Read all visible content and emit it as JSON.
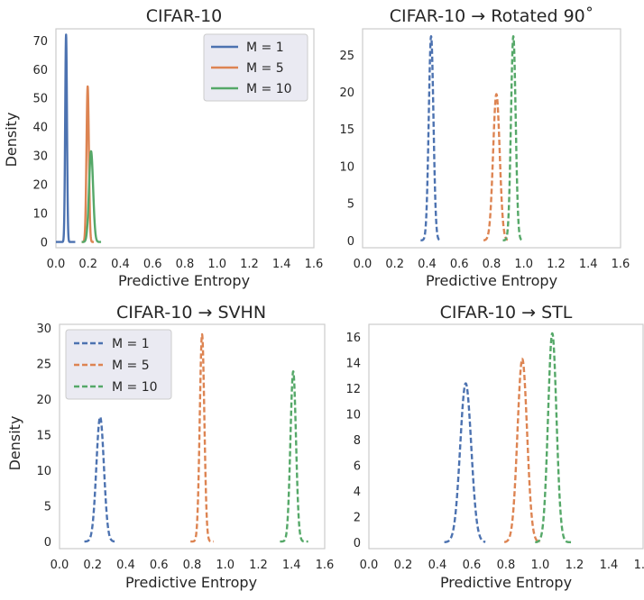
{
  "colors": {
    "m1": "#4c72b0",
    "m5": "#dd8452",
    "m10": "#55a868",
    "frame": "#cccccc",
    "legend_bg": "#eaeaf2"
  },
  "legend_entries": [
    "M = 1",
    "M = 5",
    "M = 10"
  ],
  "chart_data": [
    {
      "type": "line",
      "title": "CIFAR-10",
      "xlabel": "Predictive Entropy",
      "ylabel": "Density",
      "xlim": [
        0.0,
        1.6
      ],
      "ylim": [
        -2,
        74
      ],
      "xticks": [
        "0.0",
        "0.2",
        "0.4",
        "0.6",
        "0.8",
        "1.0",
        "1.2",
        "1.4",
        "1.6"
      ],
      "yticks": [
        "0",
        "10",
        "20",
        "30",
        "40",
        "50",
        "60",
        "70"
      ],
      "line_style": "solid",
      "legend": "top-right",
      "series": [
        {
          "name": "M = 1",
          "color_key": "m1",
          "mean": 0.063,
          "peak": 72,
          "sigma": 0.0055,
          "xmin": 0.0,
          "xmax": 0.12
        },
        {
          "name": "M = 5",
          "color_key": "m5",
          "mean": 0.197,
          "peak": 54,
          "sigma": 0.0074,
          "xmin": 0.16,
          "xmax": 0.235
        },
        {
          "name": "M = 10",
          "color_key": "m10",
          "mean": 0.218,
          "peak": 31.5,
          "sigma": 0.0126,
          "xmin": 0.16,
          "xmax": 0.28
        }
      ]
    },
    {
      "type": "line",
      "title": "CIFAR-10 → Rotated 90˚",
      "xlabel": "Predictive Entropy",
      "ylabel": "",
      "xlim": [
        0.0,
        1.6
      ],
      "ylim": [
        -1,
        28.5
      ],
      "xticks": [
        "0.0",
        "0.2",
        "0.4",
        "0.6",
        "0.8",
        "1.0",
        "1.2",
        "1.4",
        "1.6"
      ],
      "yticks": [
        "0",
        "5",
        "10",
        "15",
        "20",
        "25"
      ],
      "line_style": "dashed",
      "legend": "none",
      "series": [
        {
          "name": "M = 1",
          "color_key": "m1",
          "mean": 0.425,
          "peak": 27.5,
          "sigma": 0.0145,
          "xmin": 0.36,
          "xmax": 0.49
        },
        {
          "name": "M = 5",
          "color_key": "m5",
          "mean": 0.83,
          "peak": 19.7,
          "sigma": 0.0203,
          "xmin": 0.75,
          "xmax": 0.9
        },
        {
          "name": "M = 10",
          "color_key": "m10",
          "mean": 0.935,
          "peak": 27.5,
          "sigma": 0.0145,
          "xmin": 0.87,
          "xmax": 1.0
        }
      ]
    },
    {
      "type": "line",
      "title": "CIFAR-10 → SVHN",
      "xlabel": "Predictive Entropy",
      "ylabel": "Density",
      "xlim": [
        0.0,
        1.6
      ],
      "ylim": [
        -1,
        30.5
      ],
      "xticks": [
        "0.0",
        "0.2",
        "0.4",
        "0.6",
        "0.8",
        "1.0",
        "1.2",
        "1.4",
        "1.6"
      ],
      "yticks": [
        "0",
        "5",
        "10",
        "15",
        "20",
        "25",
        "30"
      ],
      "line_style": "dashed",
      "legend": "top-left",
      "series": [
        {
          "name": "M = 1",
          "color_key": "m1",
          "mean": 0.245,
          "peak": 17.5,
          "sigma": 0.0228,
          "xmin": 0.15,
          "xmax": 0.34
        },
        {
          "name": "M = 5",
          "color_key": "m5",
          "mean": 0.86,
          "peak": 29.1,
          "sigma": 0.0137,
          "xmin": 0.79,
          "xmax": 0.93
        },
        {
          "name": "M = 10",
          "color_key": "m10",
          "mean": 1.41,
          "peak": 23.9,
          "sigma": 0.0167,
          "xmin": 1.33,
          "xmax": 1.5
        }
      ]
    },
    {
      "type": "line",
      "title": "CIFAR-10 → STL",
      "xlabel": "Predictive Entropy",
      "ylabel": "",
      "xlim": [
        0.0,
        1.6
      ],
      "ylim": [
        -0.5,
        17
      ],
      "xticks": [
        "0.0",
        "0.2",
        "0.4",
        "0.6",
        "0.8",
        "1.0",
        "1.2",
        "1.4",
        "1.6"
      ],
      "yticks": [
        "0",
        "2",
        "4",
        "6",
        "8",
        "10",
        "12",
        "14",
        "16"
      ],
      "line_style": "dashed",
      "legend": "none",
      "series": [
        {
          "name": "M = 1",
          "color_key": "m1",
          "mean": 0.565,
          "peak": 12.4,
          "sigma": 0.0322,
          "xmin": 0.44,
          "xmax": 0.68
        },
        {
          "name": "M = 5",
          "color_key": "m5",
          "mean": 0.895,
          "peak": 14.3,
          "sigma": 0.0279,
          "xmin": 0.79,
          "xmax": 1.0
        },
        {
          "name": "M = 10",
          "color_key": "m10",
          "mean": 1.07,
          "peak": 16.3,
          "sigma": 0.0245,
          "xmin": 0.97,
          "xmax": 1.18
        }
      ]
    }
  ]
}
